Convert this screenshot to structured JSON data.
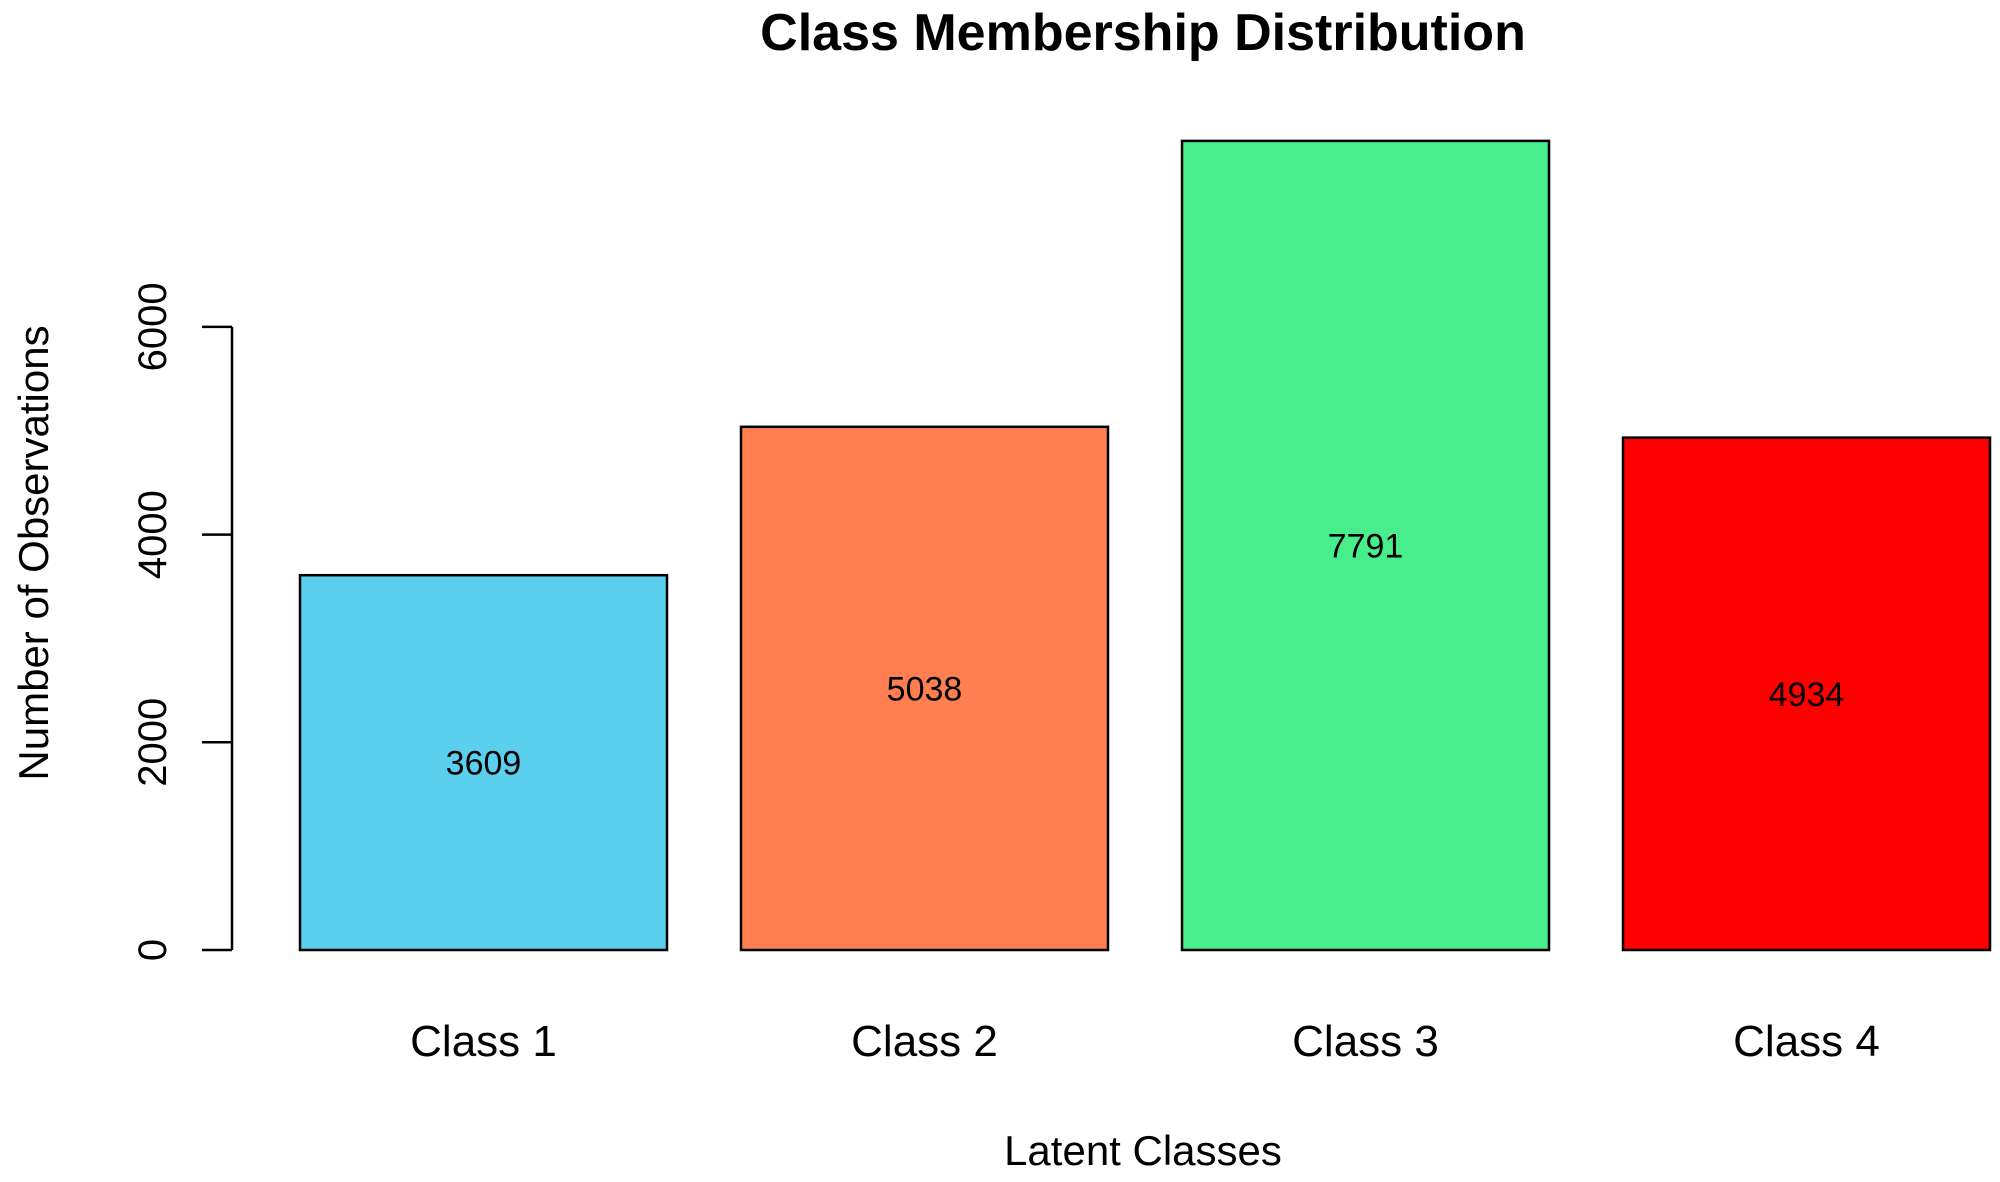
{
  "chart_data": {
    "type": "bar",
    "title": "Class Membership Distribution",
    "xlabel": "Latent Classes",
    "ylabel": "Number of Observations",
    "categories": [
      "Class 1",
      "Class 2",
      "Class 3",
      "Class 4"
    ],
    "values": [
      3609,
      5038,
      7791,
      4934
    ],
    "data_labels": [
      "3609",
      "5038",
      "7791",
      "4934"
    ],
    "colors": [
      "#5BCFEE",
      "#FF7F50",
      "#48EE8B",
      "#FF0000"
    ],
    "yticks": [
      0,
      2000,
      4000,
      6000
    ],
    "ytick_labels": [
      "0",
      "2000",
      "4000",
      "6000"
    ],
    "ylim": [
      0,
      7791
    ],
    "grid": false,
    "legend": "none"
  }
}
